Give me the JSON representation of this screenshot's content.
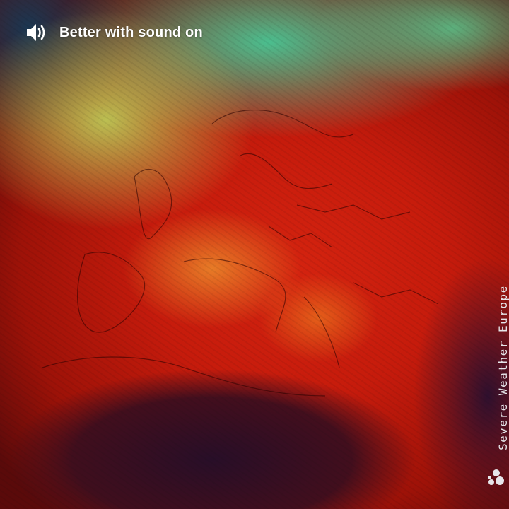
{
  "banner": {
    "label": "Better with sound on",
    "icon": "speaker-volume-icon"
  },
  "watermark": {
    "text": "Severe Weather Europe",
    "logo_icon": "severe-weather-europe-logo-icon"
  },
  "map": {
    "icon": "heatwave-temperature-map",
    "colors": {
      "hot": "#d4230f",
      "very_hot": "#9e1208",
      "warm": "#ffb43a",
      "mild": "#c8d25a",
      "cool": "#46c896",
      "cold": "#143c5a",
      "sea": "#280e28"
    }
  }
}
